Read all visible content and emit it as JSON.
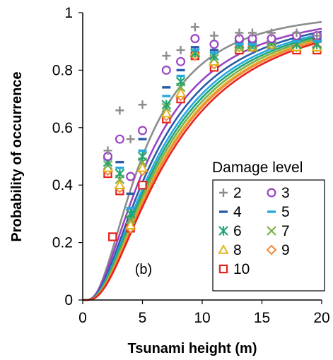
{
  "chart_data": {
    "type": "scatter",
    "panel_label": "(b)",
    "xlabel": "Tsunami height (m)",
    "ylabel": "Probability of occurrence",
    "xlim": [
      0,
      20
    ],
    "ylim": [
      0,
      1
    ],
    "x_ticks": [
      0,
      5,
      10,
      15,
      20
    ],
    "y_ticks": [
      0,
      0.2,
      0.4,
      0.6,
      0.8,
      1
    ],
    "y_tick_labels": [
      "0",
      "0.2",
      "0.4",
      "0.6",
      "0.8",
      "1"
    ],
    "grid": false,
    "legend_title": "Damage level",
    "legend_placement": "right",
    "series": [
      {
        "name": "2",
        "marker": "plus",
        "color": "#8c8c8c",
        "median": 5.0,
        "beta": 0.75,
        "x": [
          2.1,
          3.1,
          4.0,
          5.0,
          7.0,
          8.2,
          9.4,
          11.0,
          13.1,
          14.2,
          15.8,
          17.9,
          19.6
        ],
        "y": [
          0.52,
          0.66,
          0.56,
          0.68,
          0.85,
          0.87,
          0.95,
          0.92,
          0.93,
          0.93,
          0.93,
          0.93,
          0.92
        ]
      },
      {
        "name": "3",
        "marker": "circle",
        "color": "#9a44c4",
        "median": 5.6,
        "beta": 0.8,
        "x": [
          2.1,
          3.1,
          4.0,
          5.0,
          7.0,
          8.2,
          9.4,
          11.0,
          13.1,
          14.2,
          15.8,
          17.9,
          19.6
        ],
        "y": [
          0.5,
          0.56,
          0.43,
          0.59,
          0.8,
          0.83,
          0.91,
          0.89,
          0.91,
          0.91,
          0.91,
          0.92,
          0.92
        ]
      },
      {
        "name": "4",
        "marker": "dash",
        "color": "#2a5aa8",
        "median": 6.0,
        "beta": 0.8,
        "x": [
          2.1,
          3.1,
          4.0,
          5.0,
          7.0,
          8.2,
          9.4,
          11.0,
          13.1,
          14.2,
          15.8,
          17.9,
          19.6
        ],
        "y": [
          0.5,
          0.48,
          0.37,
          0.56,
          0.74,
          0.8,
          0.88,
          0.87,
          0.9,
          0.9,
          0.91,
          0.91,
          0.91
        ]
      },
      {
        "name": "5",
        "marker": "dash",
        "color": "#27a9e0",
        "median": 6.3,
        "beta": 0.8,
        "x": [
          2.1,
          3.1,
          4.0,
          5.0,
          7.0,
          8.2,
          9.4,
          11.0,
          13.1,
          14.2,
          15.8,
          17.9,
          19.6
        ],
        "y": [
          0.49,
          0.46,
          0.32,
          0.52,
          0.71,
          0.78,
          0.87,
          0.86,
          0.89,
          0.89,
          0.9,
          0.9,
          0.9
        ]
      },
      {
        "name": "6",
        "marker": "asterisk",
        "color": "#1fa673",
        "median": 6.5,
        "beta": 0.8,
        "x": [
          2.1,
          3.1,
          4.0,
          5.0,
          7.0,
          8.2,
          9.4,
          11.0,
          13.1,
          14.2,
          15.8,
          17.9,
          19.6
        ],
        "y": [
          0.48,
          0.44,
          0.3,
          0.5,
          0.68,
          0.76,
          0.86,
          0.85,
          0.89,
          0.89,
          0.9,
          0.89,
          0.89
        ]
      },
      {
        "name": "7",
        "marker": "x",
        "color": "#7fae4c",
        "median": 6.7,
        "beta": 0.8,
        "x": [
          2.1,
          3.1,
          4.0,
          5.0,
          7.0,
          8.2,
          9.4,
          11.0,
          13.1,
          14.2,
          15.8,
          17.9,
          19.6
        ],
        "y": [
          0.47,
          0.42,
          0.28,
          0.48,
          0.67,
          0.74,
          0.86,
          0.84,
          0.88,
          0.88,
          0.89,
          0.89,
          0.89
        ]
      },
      {
        "name": "8",
        "marker": "triangle",
        "color": "#e3b41c",
        "median": 6.9,
        "beta": 0.8,
        "x": [
          2.1,
          3.1,
          4.0,
          5.0,
          7.0,
          8.2,
          9.4,
          11.0,
          13.1,
          14.2,
          15.8,
          17.9,
          19.6
        ],
        "y": [
          0.46,
          0.4,
          0.26,
          0.46,
          0.65,
          0.72,
          0.86,
          0.83,
          0.88,
          0.88,
          0.89,
          0.88,
          0.88
        ]
      },
      {
        "name": "9",
        "marker": "diamond",
        "color": "#f08a3c",
        "median": 7.0,
        "beta": 0.8,
        "x": [
          2.1,
          3.1,
          4.0,
          5.0,
          7.0,
          8.2,
          9.4,
          11.0,
          13.1,
          14.2,
          15.8,
          17.9,
          19.6
        ],
        "y": [
          0.45,
          0.39,
          0.25,
          0.45,
          0.64,
          0.71,
          0.85,
          0.82,
          0.88,
          0.88,
          0.89,
          0.88,
          0.88
        ]
      },
      {
        "name": "10",
        "marker": "square",
        "color": "#e8231c",
        "median": 7.2,
        "beta": 0.8,
        "x": [
          2.1,
          2.5,
          3.1,
          4.0,
          5.0,
          7.0,
          8.2,
          9.4,
          11.0,
          13.1,
          14.2,
          15.8,
          17.9,
          19.6
        ],
        "y": [
          0.44,
          0.22,
          0.38,
          0.25,
          0.4,
          0.63,
          0.7,
          0.85,
          0.81,
          0.87,
          0.88,
          0.89,
          0.87,
          0.87
        ]
      }
    ]
  }
}
